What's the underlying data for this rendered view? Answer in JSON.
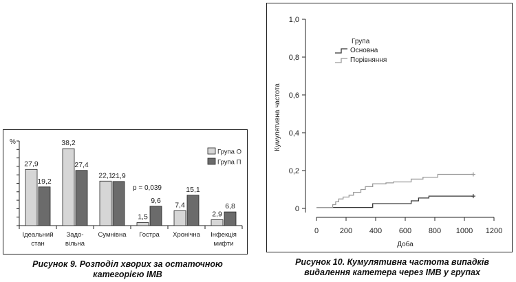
{
  "chart_data": [
    {
      "type": "bar",
      "ylabel": "%",
      "ylim": [
        0,
        42
      ],
      "categories": [
        [
          "Ідеальний",
          "стан"
        ],
        [
          "Задо-",
          "вільна"
        ],
        [
          "Сумнівна"
        ],
        [
          "Гостра"
        ],
        [
          "Хронічна"
        ],
        [
          "Інфекція",
          "мифти"
        ]
      ],
      "series": [
        {
          "name": "Група О",
          "color": "#d6d6d6",
          "values": [
            27.9,
            38.2,
            22.1,
            1.5,
            7.4,
            2.9
          ]
        },
        {
          "name": "Група П",
          "color": "#6b6b6b",
          "values": [
            19.2,
            27.4,
            21.9,
            9.6,
            15.1,
            6.8
          ]
        }
      ],
      "value_labels": [
        [
          "27,9",
          "38,2",
          "22,1",
          "1,5",
          "7,4",
          "2,9"
        ],
        [
          "19,2",
          "27,4",
          "21,9",
          "9,6",
          "15,1",
          "6,8"
        ]
      ],
      "annotation": "p = 0,039",
      "legend": "top-right",
      "caption": [
        "Рисунок 9. Розподіл хворих за остаточною",
        "категорією ІМВ"
      ]
    },
    {
      "type": "line",
      "xlabel": "Доба",
      "ylabel": "Кумулятивна частота",
      "xlim": [
        0,
        1200
      ],
      "ylim": [
        0,
        1.0
      ],
      "xticks": [
        "0",
        "200",
        "400",
        "600",
        "800",
        "1000",
        "1200"
      ],
      "yticks": [
        "0",
        "0,2",
        "0,4",
        "0,6",
        "0,8",
        "1,0"
      ],
      "legend_title": "Група",
      "legend": "top-left",
      "series": [
        {
          "name": "Основна",
          "color": "#333333",
          "x": [
            0,
            380,
            380,
            640,
            640,
            690,
            690,
            760,
            760,
            1060
          ],
          "y": [
            0.005,
            0.005,
            0.025,
            0.025,
            0.04,
            0.04,
            0.055,
            0.055,
            0.065,
            0.065
          ]
        },
        {
          "name": "Порівняння",
          "color": "#9a9a9a",
          "x": [
            0,
            110,
            110,
            130,
            130,
            150,
            150,
            180,
            180,
            220,
            220,
            250,
            250,
            300,
            300,
            330,
            330,
            380,
            380,
            470,
            470,
            520,
            520,
            640,
            640,
            720,
            720,
            820,
            820,
            1060
          ],
          "y": [
            0.005,
            0.005,
            0.02,
            0.02,
            0.035,
            0.035,
            0.05,
            0.05,
            0.06,
            0.06,
            0.07,
            0.07,
            0.085,
            0.085,
            0.1,
            0.1,
            0.115,
            0.115,
            0.13,
            0.13,
            0.135,
            0.135,
            0.14,
            0.14,
            0.155,
            0.155,
            0.165,
            0.165,
            0.18,
            0.18
          ]
        }
      ],
      "caption": [
        "Рисунок 10. Кумулятивна частота випадків",
        "видалення катетера через ІМВ у групах"
      ]
    }
  ]
}
